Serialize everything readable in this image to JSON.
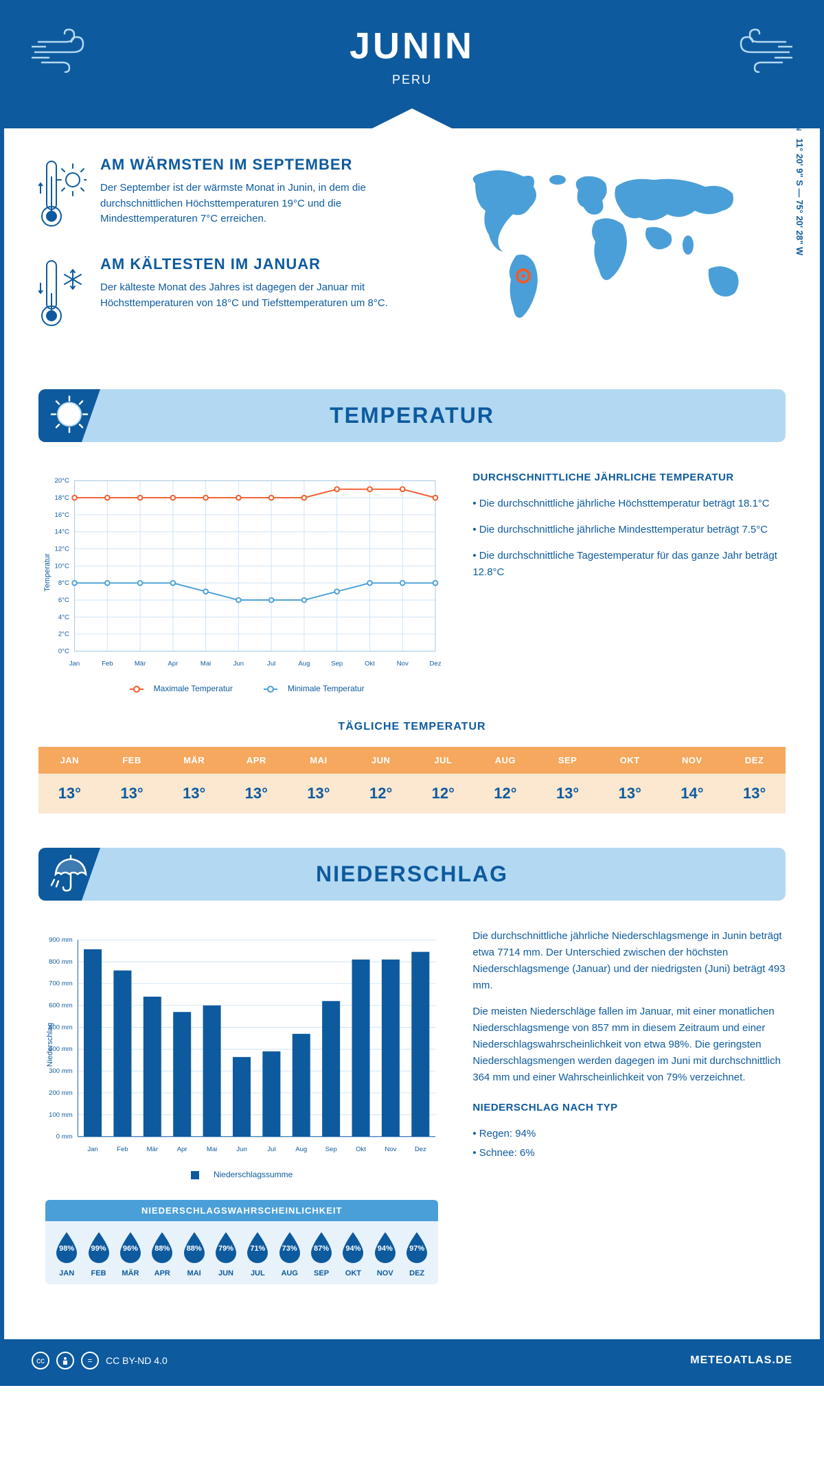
{
  "header": {
    "title": "JUNIN",
    "subtitle": "PERU",
    "location_label": "JUNIN",
    "coords": "11° 20' 9\" S — 75° 20' 28\" W"
  },
  "stats": {
    "warmest": {
      "title": "AM WÄRMSTEN IM SEPTEMBER",
      "text": "Der September ist der wärmste Monat in Junin, in dem die durchschnittlichen Höchsttemperaturen 19°C und die Mindesttemperaturen 7°C erreichen."
    },
    "coldest": {
      "title": "AM KÄLTESTEN IM JANUAR",
      "text": "Der kälteste Monat des Jahres ist dagegen der Januar mit Höchsttemperaturen von 18°C und Tiefsttemperaturen um 8°C."
    }
  },
  "months": [
    "Jan",
    "Feb",
    "Mär",
    "Apr",
    "Mai",
    "Jun",
    "Jul",
    "Aug",
    "Sep",
    "Okt",
    "Nov",
    "Dez"
  ],
  "months_upper": [
    "JAN",
    "FEB",
    "MÄR",
    "APR",
    "MAI",
    "JUN",
    "JUL",
    "AUG",
    "SEP",
    "OKT",
    "NOV",
    "DEZ"
  ],
  "temp_section": {
    "title": "TEMPERATUR",
    "chart": {
      "type": "line",
      "ylabel": "Temperatur",
      "ylim": [
        0,
        20
      ],
      "ytick_step": 2,
      "ytick_suffix": "°C",
      "grid_color": "#cde3f5",
      "border_color": "#a8c8e0",
      "series": [
        {
          "name": "Maximale Temperatur",
          "color": "#f15a29",
          "values": [
            18,
            18,
            18,
            18,
            18,
            18,
            18,
            18,
            19,
            19,
            19,
            18
          ]
        },
        {
          "name": "Minimale Temperatur",
          "color": "#4a9fd8",
          "values": [
            8,
            8,
            8,
            8,
            7,
            6,
            6,
            6,
            7,
            8,
            8,
            8
          ]
        }
      ]
    },
    "summary_title": "DURCHSCHNITTLICHE JÄHRLICHE TEMPERATUR",
    "summary": [
      "• Die durchschnittliche jährliche Höchsttemperatur beträgt 18.1°C",
      "• Die durchschnittliche jährliche Mindesttemperatur beträgt 7.5°C",
      "• Die durchschnittliche Tagestemperatur für das ganze Jahr beträgt 12.8°C"
    ],
    "daily_title": "TÄGLICHE TEMPERATUR",
    "daily_values": [
      "13°",
      "13°",
      "13°",
      "13°",
      "13°",
      "12°",
      "12°",
      "12°",
      "13°",
      "13°",
      "14°",
      "13°"
    ]
  },
  "precip_section": {
    "title": "NIEDERSCHLAG",
    "chart": {
      "type": "bar",
      "ylabel": "Niederschlag",
      "ylim": [
        0,
        900
      ],
      "ytick_step": 100,
      "ytick_suffix": " mm",
      "bar_color": "#0d5a9e",
      "grid_color": "#cde3f5",
      "values": [
        857,
        760,
        640,
        570,
        600,
        364,
        390,
        470,
        620,
        810,
        810,
        845
      ],
      "legend": "Niederschlagssumme"
    },
    "summary": [
      "Die durchschnittliche jährliche Niederschlagsmenge in Junin beträgt etwa 7714 mm. Der Unterschied zwischen der höchsten Niederschlagsmenge (Januar) und der niedrigsten (Juni) beträgt 493 mm.",
      "Die meisten Niederschläge fallen im Januar, mit einer monatlichen Niederschlagsmenge von 857 mm in diesem Zeitraum und einer Niederschlagswahrscheinlichkeit von etwa 98%. Die geringsten Niederschlagsmengen werden dagegen im Juni mit durchschnittlich 364 mm und einer Wahrscheinlichkeit von 79% verzeichnet."
    ],
    "type_title": "NIEDERSCHLAG NACH TYP",
    "types": [
      "• Regen: 94%",
      "• Schnee: 6%"
    ],
    "prob_title": "NIEDERSCHLAGSWAHRSCHEINLICHKEIT",
    "prob_values": [
      "98%",
      "99%",
      "96%",
      "88%",
      "88%",
      "79%",
      "71%",
      "73%",
      "87%",
      "94%",
      "94%",
      "97%"
    ]
  },
  "footer": {
    "license": "CC BY-ND 4.0",
    "site": "METEOATLAS.DE"
  },
  "colors": {
    "primary": "#0d5a9e",
    "light_blue": "#b3d9f2",
    "mid_blue": "#4a9fd8",
    "orange": "#f5a85e",
    "orange_light": "#fce8d0",
    "line_max": "#f15a29"
  }
}
